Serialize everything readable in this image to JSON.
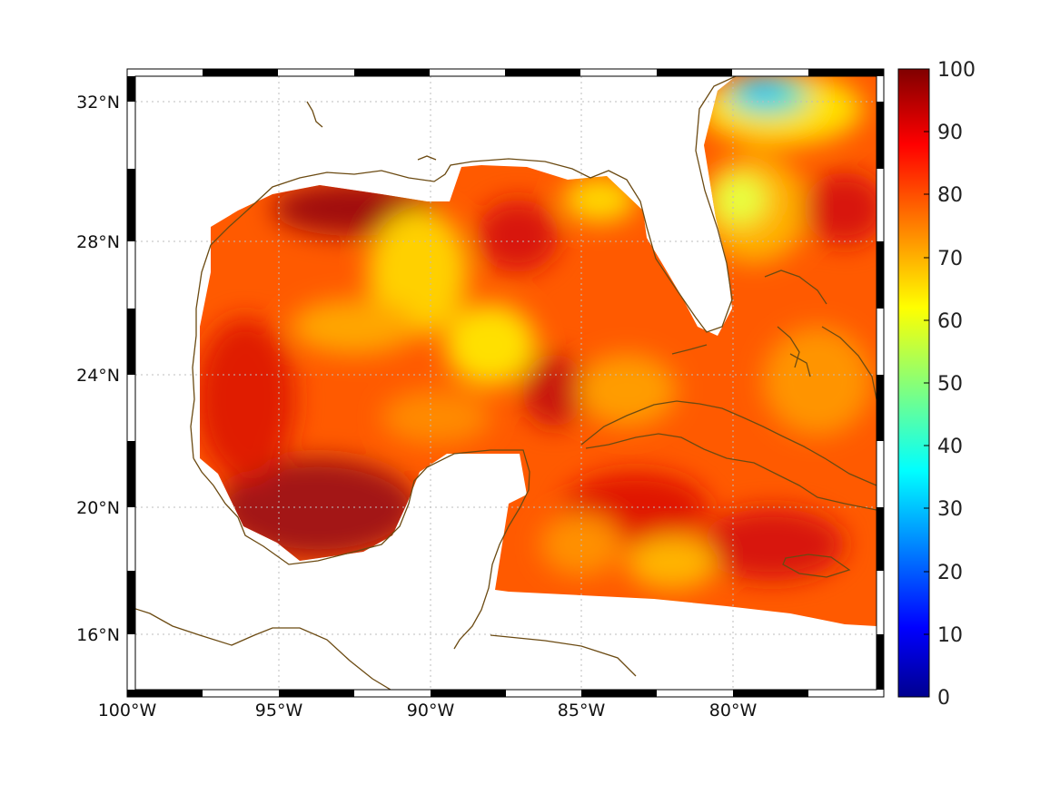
{
  "map": {
    "lon_range": [
      -100,
      -75
    ],
    "lat_range": [
      14.2,
      33
    ],
    "longitude_labels": [
      "100°W",
      "95°W",
      "90°W",
      "85°W",
      "80°W"
    ],
    "latitude_labels": [
      "32°N",
      "28°N",
      "24°N",
      "20°N",
      "16°N"
    ],
    "grid": "dotted",
    "frame": "black-white checkered border",
    "coastline_color": "#6b4a12",
    "land_color": "#ffffff"
  },
  "colorbar": {
    "min": 0,
    "max": 100,
    "tick_labels": [
      "0",
      "10",
      "20",
      "30",
      "40",
      "50",
      "60",
      "70",
      "80",
      "90",
      "100"
    ],
    "colormap": "jet"
  }
}
